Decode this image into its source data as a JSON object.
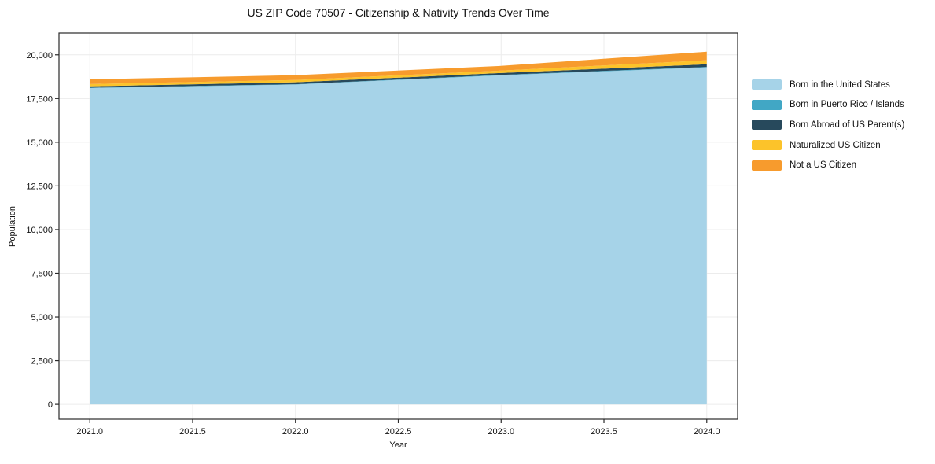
{
  "title": "US ZIP Code 70507 - Citizenship & Nativity Trends Over Time",
  "chart_data": {
    "type": "area",
    "stacked": true,
    "title": "US ZIP Code 70507 - Citizenship & Nativity Trends Over Time",
    "xlabel": "Year",
    "ylabel": "Population",
    "x": [
      2021,
      2022,
      2023,
      2024
    ],
    "series": [
      {
        "name": "Born in the United States",
        "color": "#a6d3e8",
        "values": [
          18100,
          18300,
          18830,
          19280
        ]
      },
      {
        "name": "Born in Puerto Rico / Islands",
        "color": "#41a7c5",
        "values": [
          20,
          20,
          25,
          30
        ]
      },
      {
        "name": "Born Abroad of US Parent(s)",
        "color": "#27495c",
        "values": [
          80,
          110,
          105,
          150
        ]
      },
      {
        "name": "Naturalized US Citizen",
        "color": "#fcc32a",
        "values": [
          130,
          130,
          140,
          230
        ]
      },
      {
        "name": "Not a US Citizen",
        "color": "#f79b2d",
        "values": [
          270,
          275,
          270,
          490
        ]
      }
    ],
    "xlim": [
      2020.85,
      2024.15
    ],
    "ylim": [
      -850,
      21250
    ],
    "xticks": [
      2021.0,
      2021.5,
      2022.0,
      2022.5,
      2023.0,
      2023.5,
      2024.0
    ],
    "xtick_labels": [
      "2021.0",
      "2021.5",
      "2022.0",
      "2022.5",
      "2023.0",
      "2023.5",
      "2024.0"
    ],
    "yticks": [
      0,
      2500,
      5000,
      7500,
      10000,
      12500,
      15000,
      17500,
      20000
    ],
    "ytick_labels": [
      "0",
      "2,500",
      "5,000",
      "7,500",
      "10,000",
      "12,500",
      "15,000",
      "17,500",
      "20,000"
    ],
    "grid": true,
    "legend_position": "right-outside"
  },
  "colors": {
    "grid": "#ececec",
    "spine": "#2a2a2a",
    "tick_text": "#111111",
    "background": "#ffffff"
  }
}
